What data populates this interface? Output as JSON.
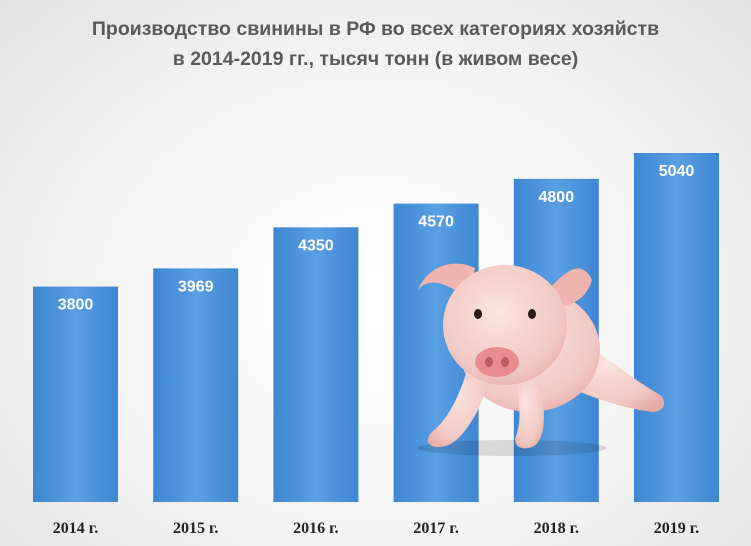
{
  "chart_data": {
    "type": "bar",
    "title_lines": [
      "Производство свинины в РФ во всех категориях хозяйств",
      "в 2014-2019 гг., тысяч тонн (в живом весе)"
    ],
    "categories": [
      "2014 г.",
      "2015 г.",
      "2016 г.",
      "2017 г.",
      "2018 г.",
      "2019 г."
    ],
    "values": [
      3800,
      3969,
      4350,
      4570,
      4800,
      5040
    ],
    "data_labels": [
      "3800",
      "3969",
      "4350",
      "4570",
      "4800",
      "5040"
    ],
    "xlabel": "",
    "ylabel": "",
    "ylim": [
      1800,
      5040
    ],
    "grid": false,
    "legend": "none",
    "bar_color": "#4e93da",
    "title_color": "#5a5a5a"
  },
  "illustration": {
    "icon": "piglet-icon"
  }
}
